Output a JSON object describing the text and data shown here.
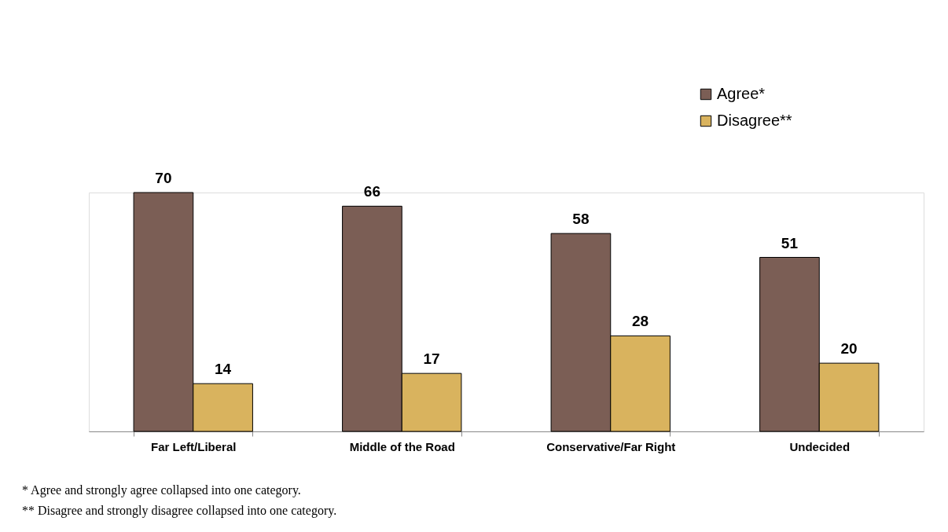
{
  "chart_data": {
    "type": "bar",
    "categories": [
      "Far Left/Liberal",
      "Middle of the Road",
      "Conservative/Far Right",
      "Undecided"
    ],
    "series": [
      {
        "name": "Agree*",
        "color": "#7b5e55",
        "values": [
          70,
          66,
          58,
          51
        ]
      },
      {
        "name": "Disagree**",
        "color": "#d9b35e",
        "values": [
          14,
          17,
          28,
          20
        ]
      }
    ],
    "data_labels": true,
    "legend": "top right",
    "grid": false,
    "tick_labels": "x",
    "annotations": [
      "* Agree and strongly agree collapsed into one category.",
      "** Disagree and strongly disagree collapsed into one category."
    ]
  }
}
